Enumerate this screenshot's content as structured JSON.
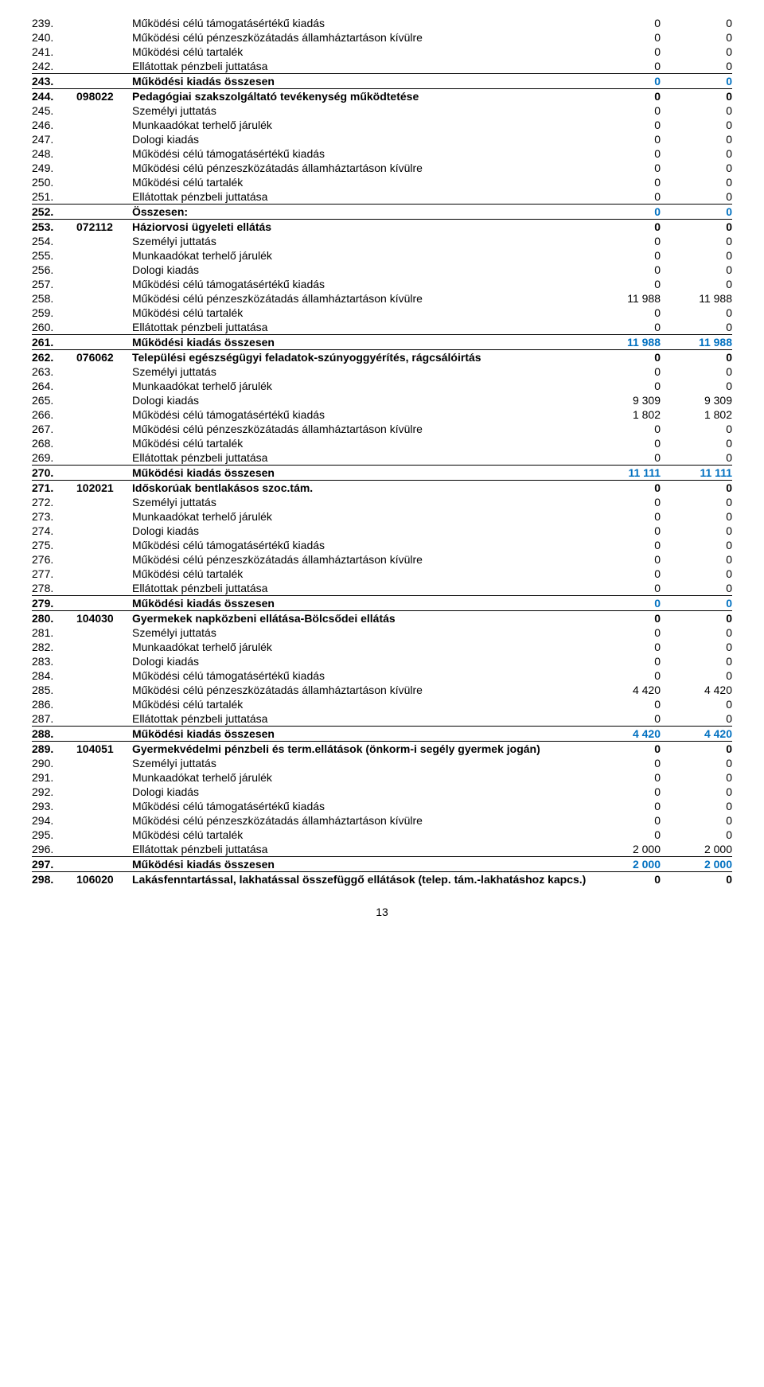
{
  "page_number": "13",
  "colors": {
    "blue": "#0070C0",
    "text": "#000000",
    "background": "#ffffff"
  },
  "rows": [
    {
      "n": "239.",
      "code": "",
      "label": "Működési célú támogatásértékű kiadás",
      "v1": "0",
      "v2": "0",
      "bold": false,
      "blue": false,
      "lineTop": false
    },
    {
      "n": "240.",
      "code": "",
      "label": "Működési célú pénzeszközátadás államháztartáson kívülre",
      "v1": "0",
      "v2": "0",
      "bold": false,
      "blue": false,
      "lineTop": false
    },
    {
      "n": "241.",
      "code": "",
      "label": "Működési célú tartalék",
      "v1": "0",
      "v2": "0",
      "bold": false,
      "blue": false,
      "lineTop": false
    },
    {
      "n": "242.",
      "code": "",
      "label": "Ellátottak pénzbeli juttatása",
      "v1": "0",
      "v2": "0",
      "bold": false,
      "blue": false,
      "lineTop": false
    },
    {
      "n": "243.",
      "code": "",
      "label": "Működési kiadás összesen",
      "v1": "0",
      "v2": "0",
      "bold": true,
      "blue": true,
      "lineTop": true
    },
    {
      "n": "244.",
      "code": "098022",
      "label": "Pedagógiai szakszolgáltató tevékenység működtetése",
      "v1": "0",
      "v2": "0",
      "bold": true,
      "blue": false,
      "lineTop": true
    },
    {
      "n": "245.",
      "code": "",
      "label": "Személyi juttatás",
      "v1": "0",
      "v2": "0",
      "bold": false,
      "blue": false,
      "lineTop": false
    },
    {
      "n": "246.",
      "code": "",
      "label": "Munkaadókat terhelő járulék",
      "v1": "0",
      "v2": "0",
      "bold": false,
      "blue": false,
      "lineTop": false
    },
    {
      "n": "247.",
      "code": "",
      "label": "Dologi kiadás",
      "v1": "0",
      "v2": "0",
      "bold": false,
      "blue": false,
      "lineTop": false
    },
    {
      "n": "248.",
      "code": "",
      "label": "Működési célú támogatásértékű kiadás",
      "v1": "0",
      "v2": "0",
      "bold": false,
      "blue": false,
      "lineTop": false
    },
    {
      "n": "249.",
      "code": "",
      "label": "Működési célú pénzeszközátadás államháztartáson kívülre",
      "v1": "0",
      "v2": "0",
      "bold": false,
      "blue": false,
      "lineTop": false
    },
    {
      "n": "250.",
      "code": "",
      "label": "Működési célú tartalék",
      "v1": "0",
      "v2": "0",
      "bold": false,
      "blue": false,
      "lineTop": false
    },
    {
      "n": "251.",
      "code": "",
      "label": "Ellátottak pénzbeli juttatása",
      "v1": "0",
      "v2": "0",
      "bold": false,
      "blue": false,
      "lineTop": false
    },
    {
      "n": "252.",
      "code": "",
      "label": "Összesen:",
      "v1": "0",
      "v2": "0",
      "bold": true,
      "blue": true,
      "lineTop": true
    },
    {
      "n": "253.",
      "code": "072112",
      "label": "Háziorvosi ügyeleti ellátás",
      "v1": "0",
      "v2": "0",
      "bold": true,
      "blue": false,
      "lineTop": true
    },
    {
      "n": "254.",
      "code": "",
      "label": "Személyi juttatás",
      "v1": "0",
      "v2": "0",
      "bold": false,
      "blue": false,
      "lineTop": false
    },
    {
      "n": "255.",
      "code": "",
      "label": "Munkaadókat terhelő járulék",
      "v1": "0",
      "v2": "0",
      "bold": false,
      "blue": false,
      "lineTop": false
    },
    {
      "n": "256.",
      "code": "",
      "label": "Dologi kiadás",
      "v1": "0",
      "v2": "0",
      "bold": false,
      "blue": false,
      "lineTop": false
    },
    {
      "n": "257.",
      "code": "",
      "label": "Működési célú támogatásértékű kiadás",
      "v1": "0",
      "v2": "0",
      "bold": false,
      "blue": false,
      "lineTop": false
    },
    {
      "n": "258.",
      "code": "",
      "label": "Működési célú pénzeszközátadás államháztartáson kívülre",
      "v1": "11 988",
      "v2": "11 988",
      "bold": false,
      "blue": false,
      "lineTop": false
    },
    {
      "n": "259.",
      "code": "",
      "label": "Működési célú tartalék",
      "v1": "0",
      "v2": "0",
      "bold": false,
      "blue": false,
      "lineTop": false
    },
    {
      "n": "260.",
      "code": "",
      "label": "Ellátottak pénzbeli juttatása",
      "v1": "0",
      "v2": "0",
      "bold": false,
      "blue": false,
      "lineTop": false
    },
    {
      "n": "261.",
      "code": "",
      "label": "Működési kiadás összesen",
      "v1": "11 988",
      "v2": "11 988",
      "bold": true,
      "blue": true,
      "lineTop": true
    },
    {
      "n": "262.",
      "code": "076062",
      "label": "Települési egészségügyi feladatok-szúnyoggyérítés, rágcsálóirtás",
      "v1": "0",
      "v2": "0",
      "bold": true,
      "blue": false,
      "lineTop": true
    },
    {
      "n": "263.",
      "code": "",
      "label": "Személyi juttatás",
      "v1": "0",
      "v2": "0",
      "bold": false,
      "blue": false,
      "lineTop": false
    },
    {
      "n": "264.",
      "code": "",
      "label": "Munkaadókat terhelő járulék",
      "v1": "0",
      "v2": "0",
      "bold": false,
      "blue": false,
      "lineTop": false
    },
    {
      "n": "265.",
      "code": "",
      "label": "Dologi kiadás",
      "v1": "9 309",
      "v2": "9 309",
      "bold": false,
      "blue": false,
      "lineTop": false
    },
    {
      "n": "266.",
      "code": "",
      "label": "Működési célú támogatásértékű kiadás",
      "v1": "1 802",
      "v2": "1 802",
      "bold": false,
      "blue": false,
      "lineTop": false
    },
    {
      "n": "267.",
      "code": "",
      "label": "Működési célú pénzeszközátadás államháztartáson kívülre",
      "v1": "0",
      "v2": "0",
      "bold": false,
      "blue": false,
      "lineTop": false
    },
    {
      "n": "268.",
      "code": "",
      "label": "Működési célú tartalék",
      "v1": "0",
      "v2": "0",
      "bold": false,
      "blue": false,
      "lineTop": false
    },
    {
      "n": "269.",
      "code": "",
      "label": "Ellátottak pénzbeli juttatása",
      "v1": "0",
      "v2": "0",
      "bold": false,
      "blue": false,
      "lineTop": false
    },
    {
      "n": "270.",
      "code": "",
      "label": "Működési kiadás összesen",
      "v1": "11 111",
      "v2": "11 111",
      "bold": true,
      "blue": true,
      "lineTop": true
    },
    {
      "n": "271.",
      "code": "102021",
      "label": "Időskorúak bentlakásos szoc.tám.",
      "v1": "0",
      "v2": "0",
      "bold": true,
      "blue": false,
      "lineTop": true
    },
    {
      "n": "272.",
      "code": "",
      "label": "Személyi juttatás",
      "v1": "0",
      "v2": "0",
      "bold": false,
      "blue": false,
      "lineTop": false
    },
    {
      "n": "273.",
      "code": "",
      "label": "Munkaadókat terhelő járulék",
      "v1": "0",
      "v2": "0",
      "bold": false,
      "blue": false,
      "lineTop": false
    },
    {
      "n": "274.",
      "code": "",
      "label": "Dologi kiadás",
      "v1": "0",
      "v2": "0",
      "bold": false,
      "blue": false,
      "lineTop": false
    },
    {
      "n": "275.",
      "code": "",
      "label": "Működési célú támogatásértékű kiadás",
      "v1": "0",
      "v2": "0",
      "bold": false,
      "blue": false,
      "lineTop": false
    },
    {
      "n": "276.",
      "code": "",
      "label": "Működési célú pénzeszközátadás államháztartáson kívülre",
      "v1": "0",
      "v2": "0",
      "bold": false,
      "blue": false,
      "lineTop": false
    },
    {
      "n": "277.",
      "code": "",
      "label": "Működési célú tartalék",
      "v1": "0",
      "v2": "0",
      "bold": false,
      "blue": false,
      "lineTop": false
    },
    {
      "n": "278.",
      "code": "",
      "label": "Ellátottak pénzbeli juttatása",
      "v1": "0",
      "v2": "0",
      "bold": false,
      "blue": false,
      "lineTop": false
    },
    {
      "n": "279.",
      "code": "",
      "label": "Működési kiadás összesen",
      "v1": "0",
      "v2": "0",
      "bold": true,
      "blue": true,
      "lineTop": true
    },
    {
      "n": "280.",
      "code": "104030",
      "label": "Gyermekek napközbeni ellátása-Bölcsődei ellátás",
      "v1": "0",
      "v2": "0",
      "bold": true,
      "blue": false,
      "lineTop": true
    },
    {
      "n": "281.",
      "code": "",
      "label": "Személyi juttatás",
      "v1": "0",
      "v2": "0",
      "bold": false,
      "blue": false,
      "lineTop": false
    },
    {
      "n": "282.",
      "code": "",
      "label": "Munkaadókat terhelő járulék",
      "v1": "0",
      "v2": "0",
      "bold": false,
      "blue": false,
      "lineTop": false
    },
    {
      "n": "283.",
      "code": "",
      "label": "Dologi kiadás",
      "v1": "0",
      "v2": "0",
      "bold": false,
      "blue": false,
      "lineTop": false
    },
    {
      "n": "284.",
      "code": "",
      "label": "Működési célú támogatásértékű kiadás",
      "v1": "0",
      "v2": "0",
      "bold": false,
      "blue": false,
      "lineTop": false
    },
    {
      "n": "285.",
      "code": "",
      "label": "Működési célú pénzeszközátadás államháztartáson kívülre",
      "v1": "4 420",
      "v2": "4 420",
      "bold": false,
      "blue": false,
      "lineTop": false
    },
    {
      "n": "286.",
      "code": "",
      "label": "Működési célú tartalék",
      "v1": "0",
      "v2": "0",
      "bold": false,
      "blue": false,
      "lineTop": false
    },
    {
      "n": "287.",
      "code": "",
      "label": "Ellátottak pénzbeli juttatása",
      "v1": "0",
      "v2": "0",
      "bold": false,
      "blue": false,
      "lineTop": false
    },
    {
      "n": "288.",
      "code": "",
      "label": "Működési kiadás összesen",
      "v1": "4 420",
      "v2": "4 420",
      "bold": true,
      "blue": true,
      "lineTop": true
    },
    {
      "n": "289.",
      "code": "104051",
      "label": "Gyermekvédelmi pénzbeli és term.ellátások (önkorm-i segély gyermek jogán)",
      "v1": "0",
      "v2": "0",
      "bold": true,
      "blue": false,
      "lineTop": true
    },
    {
      "n": "290.",
      "code": "",
      "label": "Személyi juttatás",
      "v1": "0",
      "v2": "0",
      "bold": false,
      "blue": false,
      "lineTop": false
    },
    {
      "n": "291.",
      "code": "",
      "label": "Munkaadókat terhelő járulék",
      "v1": "0",
      "v2": "0",
      "bold": false,
      "blue": false,
      "lineTop": false
    },
    {
      "n": "292.",
      "code": "",
      "label": "Dologi kiadás",
      "v1": "0",
      "v2": "0",
      "bold": false,
      "blue": false,
      "lineTop": false
    },
    {
      "n": "293.",
      "code": "",
      "label": "Működési célú támogatásértékű kiadás",
      "v1": "0",
      "v2": "0",
      "bold": false,
      "blue": false,
      "lineTop": false
    },
    {
      "n": "294.",
      "code": "",
      "label": "Működési célú pénzeszközátadás államháztartáson kívülre",
      "v1": "0",
      "v2": "0",
      "bold": false,
      "blue": false,
      "lineTop": false
    },
    {
      "n": "295.",
      "code": "",
      "label": "Működési célú tartalék",
      "v1": "0",
      "v2": "0",
      "bold": false,
      "blue": false,
      "lineTop": false
    },
    {
      "n": "296.",
      "code": "",
      "label": "Ellátottak pénzbeli juttatása",
      "v1": "2 000",
      "v2": "2 000",
      "bold": false,
      "blue": false,
      "lineTop": false
    },
    {
      "n": "297.",
      "code": "",
      "label": "Működési kiadás összesen",
      "v1": "2 000",
      "v2": "2 000",
      "bold": true,
      "blue": true,
      "lineTop": true
    },
    {
      "n": "298.",
      "code": "106020",
      "label": "Lakásfenntartással, lakhatással összefüggő ellátások (telep. tám.-lakhatáshoz kapcs.)",
      "v1": "0",
      "v2": "0",
      "bold": true,
      "blue": false,
      "lineTop": true
    }
  ]
}
